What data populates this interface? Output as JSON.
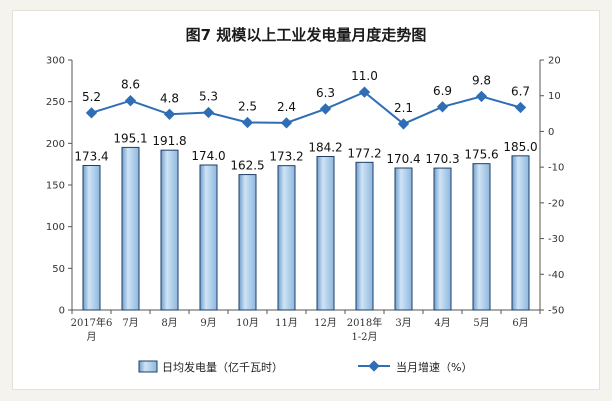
{
  "chart_data": {
    "type": "bar",
    "title": "图7  规模以上工业发电量月度走势图",
    "categories": [
      [
        "2017年6",
        "月"
      ],
      [
        "7月"
      ],
      [
        "8月"
      ],
      [
        "9月"
      ],
      [
        "10月"
      ],
      [
        "11月"
      ],
      [
        "12月"
      ],
      [
        "2018年",
        "1-2月"
      ],
      [
        "3月"
      ],
      [
        "4月"
      ],
      [
        "5月"
      ],
      [
        "6月"
      ]
    ],
    "series": [
      {
        "name": "日均发电量（亿千瓦时）",
        "type": "bar",
        "axis": "left",
        "values": [
          173.4,
          195.1,
          191.8,
          174.0,
          162.5,
          173.2,
          184.2,
          177.2,
          170.4,
          170.3,
          175.6,
          185.0
        ],
        "labels": [
          "173.4",
          "195.1",
          "191.8",
          "174.0",
          "162.5",
          "173.2",
          "184.2",
          "177.2",
          "170.4",
          "170.3",
          "175.6",
          "185.0"
        ],
        "color": "#a9cbe9"
      },
      {
        "name": "当月增速（%）",
        "type": "line",
        "axis": "right",
        "values": [
          5.2,
          8.6,
          4.8,
          5.3,
          2.5,
          2.4,
          6.3,
          11.0,
          2.1,
          6.9,
          9.8,
          6.7
        ],
        "labels": [
          "5.2",
          "8.6",
          "4.8",
          "5.3",
          "2.5",
          "2.4",
          "6.3",
          "11.0",
          "2.1",
          "6.9",
          "9.8",
          "6.7"
        ],
        "color": "#2f6db5"
      }
    ],
    "y_left": {
      "min": 0,
      "max": 300,
      "step": 50,
      "ticks": [
        "0",
        "50",
        "100",
        "150",
        "200",
        "250",
        "300"
      ]
    },
    "y_right": {
      "min": -50,
      "max": 20,
      "step": 10,
      "ticks": [
        "-50",
        "-40",
        "-30",
        "-20",
        "-10",
        "0",
        "10",
        "20"
      ]
    },
    "grid": false,
    "legend_position": "bottom"
  },
  "colors": {
    "bar_fill": "#a9cbe9",
    "bar_stroke": "#1f3f66",
    "line": "#2f6db5",
    "axis": "#555555"
  }
}
